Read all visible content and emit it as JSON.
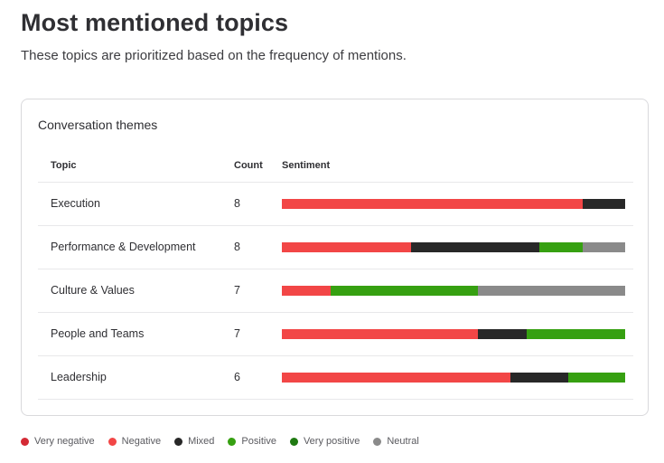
{
  "header": {
    "title": "Most mentioned topics",
    "subtitle": "These topics are prioritized based on the frequency of mentions."
  },
  "card": {
    "title": "Conversation themes",
    "columns": {
      "topic": "Topic",
      "count": "Count",
      "sentiment": "Sentiment"
    }
  },
  "colors": {
    "very_negative": "#d42a35",
    "negative": "#f24646",
    "mixed": "#282828",
    "positive": "#36a011",
    "very_positive": "#1f7a12",
    "neutral": "#8a8a8a"
  },
  "legend": [
    {
      "label": "Very negative",
      "key": "very_negative",
      "color": "#d42a35"
    },
    {
      "label": "Negative",
      "key": "negative",
      "color": "#f24646"
    },
    {
      "label": "Mixed",
      "key": "mixed",
      "color": "#282828"
    },
    {
      "label": "Positive",
      "key": "positive",
      "color": "#36a011"
    },
    {
      "label": "Very positive",
      "key": "very_positive",
      "color": "#1f7a12"
    },
    {
      "label": "Neutral",
      "key": "neutral",
      "color": "#8a8a8a"
    }
  ],
  "rows": [
    {
      "topic": "Execution",
      "count": "8"
    },
    {
      "topic": "Performance & Development",
      "count": "8"
    },
    {
      "topic": "Culture & Values",
      "count": "7"
    },
    {
      "topic": "People and Teams",
      "count": "7"
    },
    {
      "topic": "Leadership",
      "count": "6"
    }
  ],
  "chart_data": {
    "type": "bar",
    "orientation": "horizontal-stacked-100",
    "title": "Conversation themes",
    "categories": [
      "Execution",
      "Performance & Development",
      "Culture & Values",
      "People and Teams",
      "Leadership"
    ],
    "counts": [
      8,
      8,
      7,
      7,
      6
    ],
    "series": [
      {
        "name": "Very negative",
        "color": "#d42a35",
        "values": [
          0,
          0,
          0,
          0,
          0
        ]
      },
      {
        "name": "Negative",
        "color": "#f24646",
        "values": [
          7,
          3,
          1,
          4,
          4
        ]
      },
      {
        "name": "Mixed",
        "color": "#282828",
        "values": [
          1,
          3,
          0,
          1,
          1
        ]
      },
      {
        "name": "Positive",
        "color": "#36a011",
        "values": [
          0,
          1,
          3,
          2,
          1
        ]
      },
      {
        "name": "Very positive",
        "color": "#1f7a12",
        "values": [
          0,
          0,
          0,
          0,
          0
        ]
      },
      {
        "name": "Neutral",
        "color": "#8a8a8a",
        "values": [
          0,
          1,
          3,
          0,
          0
        ]
      }
    ],
    "legend_position": "bottom",
    "grid": false
  }
}
